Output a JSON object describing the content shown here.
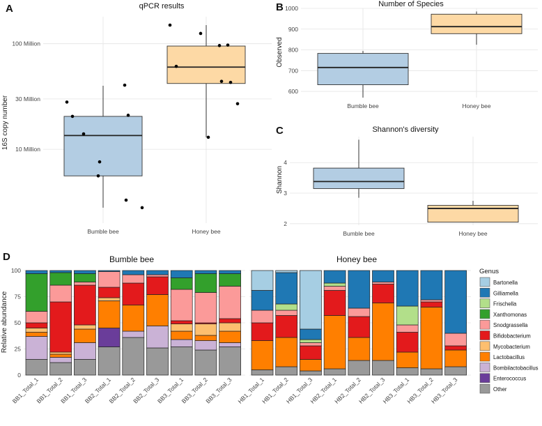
{
  "chart_data": [
    {
      "panel": "A",
      "type": "box",
      "title": "qPCR results",
      "xlabel": "",
      "ylabel": "16S copy number",
      "yscale": "log",
      "ylim": [
        2000000,
        180000000
      ],
      "yticks": [
        {
          "value": 10000000,
          "label": "10 Million"
        },
        {
          "value": 30000000,
          "label": "30 Million"
        },
        {
          "value": 100000000,
          "label": "100 Million"
        }
      ],
      "categories": [
        "Bumble bee",
        "Honey bee"
      ],
      "boxes": [
        {
          "category": "Bumble bee",
          "color": "#b3cde3",
          "min": 2800000,
          "q1": 5600000,
          "median": 13500000,
          "q3": 20500000,
          "max": 40000000
        },
        {
          "category": "Honey bee",
          "color": "#fdd9a5",
          "min": 13000000,
          "q1": 42000000,
          "median": 60000000,
          "q3": 95000000,
          "max": 150000000
        }
      ],
      "points": [
        {
          "category": "Bumble bee",
          "values": [
            28000000,
            20500000,
            14000000,
            21000000,
            40500000,
            7600000,
            5600000,
            3300000,
            2800000
          ]
        },
        {
          "category": "Honey bee",
          "values": [
            150000000,
            125000000,
            96000000,
            97000000,
            61000000,
            44000000,
            43000000,
            27000000,
            13000000
          ]
        }
      ]
    },
    {
      "panel": "B",
      "type": "box",
      "title": "Number of Species",
      "xlabel": "",
      "ylabel": "Observed",
      "ylim": [
        570,
        1000
      ],
      "yticks": [
        600,
        700,
        800,
        900,
        1000
      ],
      "categories": [
        "Bumble bee",
        "Honey bee"
      ],
      "boxes": [
        {
          "category": "Bumble bee",
          "color": "#b3cde3",
          "min": 570,
          "q1": 632,
          "median": 715,
          "q3": 783,
          "max": 795
        },
        {
          "category": "Honey bee",
          "color": "#fdd9a5",
          "min": 825,
          "q1": 878,
          "median": 912,
          "q3": 972,
          "max": 985
        }
      ]
    },
    {
      "panel": "C",
      "type": "box",
      "title": "Shannon's diversity",
      "xlabel": "",
      "ylabel": "Shannon",
      "ylim": [
        1.95,
        4.85
      ],
      "yticks": [
        2,
        3,
        4
      ],
      "categories": [
        "Bumble bee",
        "Honey bee"
      ],
      "boxes": [
        {
          "category": "Bumble bee",
          "color": "#b3cde3",
          "min": 2.85,
          "q1": 3.15,
          "median": 3.38,
          "q3": 3.82,
          "max": 4.75
        },
        {
          "category": "Honey bee",
          "color": "#fdd9a5",
          "min": 2.05,
          "q1": 2.05,
          "median": 2.5,
          "q3": 2.6,
          "max": 2.75
        }
      ]
    },
    {
      "panel": "D",
      "type": "stacked-bar",
      "ylabel": "Relative abundance",
      "ylim": [
        0,
        100
      ],
      "yticks": [
        0,
        25,
        50,
        75,
        100
      ],
      "legend_title": "Genus",
      "genera": [
        {
          "name": "Bartonella",
          "color": "#a6cee3"
        },
        {
          "name": "Gilliamella",
          "color": "#1f78b4"
        },
        {
          "name": "Frischella",
          "color": "#b2df8a"
        },
        {
          "name": "Xanthomonas",
          "color": "#33a02c"
        },
        {
          "name": "Snodgrassella",
          "color": "#fb9a99"
        },
        {
          "name": "Bifidobacterium",
          "color": "#e31a1c"
        },
        {
          "name": "Mycobacterium",
          "color": "#fdbf6f"
        },
        {
          "name": "Lactobacillus",
          "color": "#ff7f00"
        },
        {
          "name": "Bombilactobacillus",
          "color": "#cab2d6"
        },
        {
          "name": "Enterococcus",
          "color": "#6a3d9a"
        },
        {
          "name": "Other",
          "color": "#999999"
        }
      ],
      "facets": [
        {
          "name": "Bumble bee",
          "samples": [
            {
              "label": "BB1_Total_1",
              "values": {
                "Other": 15,
                "Enterococcus": 0,
                "Bombilactobacillus": 22,
                "Lactobacillus": 4,
                "Mycobacterium": 4,
                "Bifidobacterium": 5,
                "Snodgrassella": 11,
                "Xanthomonas": 36,
                "Frischella": 0,
                "Gilliamella": 3,
                "Bartonella": 0
              }
            },
            {
              "label": "BB1_Total_2",
              "values": {
                "Other": 12,
                "Enterococcus": 0,
                "Bombilactobacillus": 5,
                "Lactobacillus": 3,
                "Mycobacterium": 2,
                "Bifidobacterium": 48,
                "Snodgrassella": 16,
                "Xanthomonas": 12,
                "Frischella": 0,
                "Gilliamella": 2,
                "Bartonella": 0
              }
            },
            {
              "label": "BB1_Total_3",
              "values": {
                "Other": 15,
                "Enterococcus": 0,
                "Bombilactobacillus": 16,
                "Lactobacillus": 13,
                "Mycobacterium": 4,
                "Bifidobacterium": 38,
                "Snodgrassella": 3,
                "Xanthomonas": 8,
                "Frischella": 0,
                "Gilliamella": 3,
                "Bartonella": 0
              }
            },
            {
              "label": "BB2_Total_1",
              "values": {
                "Other": 27,
                "Enterococcus": 18,
                "Bombilactobacillus": 0,
                "Lactobacillus": 26,
                "Mycobacterium": 3,
                "Bifidobacterium": 10,
                "Snodgrassella": 15,
                "Xanthomonas": 0,
                "Frischella": 0,
                "Gilliamella": 1,
                "Bartonella": 0
              }
            },
            {
              "label": "BB2_Total_2",
              "values": {
                "Other": 36,
                "Enterococcus": 0,
                "Bombilactobacillus": 6,
                "Lactobacillus": 25,
                "Mycobacterium": 0,
                "Bifidobacterium": 21,
                "Snodgrassella": 8,
                "Xanthomonas": 0,
                "Frischella": 0,
                "Gilliamella": 4,
                "Bartonella": 0
              }
            },
            {
              "label": "BB2_Total_3",
              "values": {
                "Other": 26,
                "Enterococcus": 0,
                "Bombilactobacillus": 21,
                "Lactobacillus": 30,
                "Mycobacterium": 0,
                "Bifidobacterium": 17,
                "Snodgrassella": 2,
                "Xanthomonas": 0,
                "Frischella": 0,
                "Gilliamella": 4,
                "Bartonella": 0
              }
            },
            {
              "label": "BB3_Total_1",
              "values": {
                "Other": 27,
                "Enterococcus": 0,
                "Bombilactobacillus": 7,
                "Lactobacillus": 8,
                "Mycobacterium": 7,
                "Bifidobacterium": 3,
                "Snodgrassella": 30,
                "Xanthomonas": 11,
                "Frischella": 0,
                "Gilliamella": 7,
                "Bartonella": 0
              }
            },
            {
              "label": "BB3_Total_2",
              "values": {
                "Other": 24,
                "Enterococcus": 0,
                "Bombilactobacillus": 9,
                "Lactobacillus": 5,
                "Mycobacterium": 11,
                "Bifidobacterium": 1,
                "Snodgrassella": 29,
                "Xanthomonas": 18,
                "Frischella": 0,
                "Gilliamella": 3,
                "Bartonella": 0
              }
            },
            {
              "label": "BB3_Total_3",
              "values": {
                "Other": 27,
                "Enterococcus": 0,
                "Bombilactobacillus": 4,
                "Lactobacillus": 11,
                "Mycobacterium": 8,
                "Bifidobacterium": 4,
                "Snodgrassella": 31,
                "Xanthomonas": 12,
                "Frischella": 0,
                "Gilliamella": 3,
                "Bartonella": 0
              }
            }
          ]
        },
        {
          "name": "Honey bee",
          "samples": [
            {
              "label": "HB1_Total_1",
              "values": {
                "Other": 5,
                "Enterococcus": 0,
                "Bombilactobacillus": 0,
                "Lactobacillus": 28,
                "Mycobacterium": 0,
                "Bifidobacterium": 17,
                "Snodgrassella": 12,
                "Xanthomonas": 0,
                "Frischella": 0,
                "Gilliamella": 19,
                "Bartonella": 19
              }
            },
            {
              "label": "HB1_Total_2",
              "values": {
                "Other": 8,
                "Enterococcus": 0,
                "Bombilactobacillus": 0,
                "Lactobacillus": 28,
                "Mycobacterium": 0,
                "Bifidobacterium": 21,
                "Snodgrassella": 5,
                "Xanthomonas": 0,
                "Frischella": 6,
                "Gilliamella": 30,
                "Bartonella": 2
              }
            },
            {
              "label": "HB1_Total_3",
              "values": {
                "Other": 4,
                "Enterococcus": 0,
                "Bombilactobacillus": 0,
                "Lactobacillus": 11,
                "Mycobacterium": 0,
                "Bifidobacterium": 13,
                "Snodgrassella": 3,
                "Xanthomonas": 0,
                "Frischella": 3,
                "Gilliamella": 10,
                "Bartonella": 56
              }
            },
            {
              "label": "HB2_Total_1",
              "values": {
                "Other": 6,
                "Enterococcus": 0,
                "Bombilactobacillus": 0,
                "Lactobacillus": 51,
                "Mycobacterium": 0,
                "Bifidobacterium": 24,
                "Snodgrassella": 4,
                "Xanthomonas": 0,
                "Frischella": 3,
                "Gilliamella": 12,
                "Bartonella": 0
              }
            },
            {
              "label": "HB2_Total_2",
              "values": {
                "Other": 14,
                "Enterococcus": 0,
                "Bombilactobacillus": 0,
                "Lactobacillus": 22,
                "Mycobacterium": 0,
                "Bifidobacterium": 20,
                "Snodgrassella": 8,
                "Xanthomonas": 0,
                "Frischella": 0,
                "Gilliamella": 36,
                "Bartonella": 0
              }
            },
            {
              "label": "HB2_Total_3",
              "values": {
                "Other": 14,
                "Enterococcus": 0,
                "Bombilactobacillus": 0,
                "Lactobacillus": 55,
                "Mycobacterium": 0,
                "Bifidobacterium": 18,
                "Snodgrassella": 2,
                "Xanthomonas": 0,
                "Frischella": 0,
                "Gilliamella": 11,
                "Bartonella": 0
              }
            },
            {
              "label": "HB3_Total_1",
              "values": {
                "Other": 7,
                "Enterococcus": 0,
                "Bombilactobacillus": 0,
                "Lactobacillus": 15,
                "Mycobacterium": 0,
                "Bifidobacterium": 19,
                "Snodgrassella": 7,
                "Xanthomonas": 0,
                "Frischella": 18,
                "Gilliamella": 34,
                "Bartonella": 0
              }
            },
            {
              "label": "HB3_Total_2",
              "values": {
                "Other": 6,
                "Enterococcus": 0,
                "Bombilactobacillus": 0,
                "Lactobacillus": 59,
                "Mycobacterium": 0,
                "Bifidobacterium": 5,
                "Snodgrassella": 2,
                "Xanthomonas": 0,
                "Frischella": 0,
                "Gilliamella": 28,
                "Bartonella": 0
              }
            },
            {
              "label": "HB3_Total_3",
              "values": {
                "Other": 8,
                "Enterococcus": 0,
                "Bombilactobacillus": 0,
                "Lactobacillus": 16,
                "Mycobacterium": 0,
                "Bifidobacterium": 4,
                "Snodgrassella": 12,
                "Xanthomonas": 0,
                "Frischella": 0,
                "Gilliamella": 60,
                "Bartonella": 0
              }
            }
          ]
        }
      ]
    }
  ]
}
